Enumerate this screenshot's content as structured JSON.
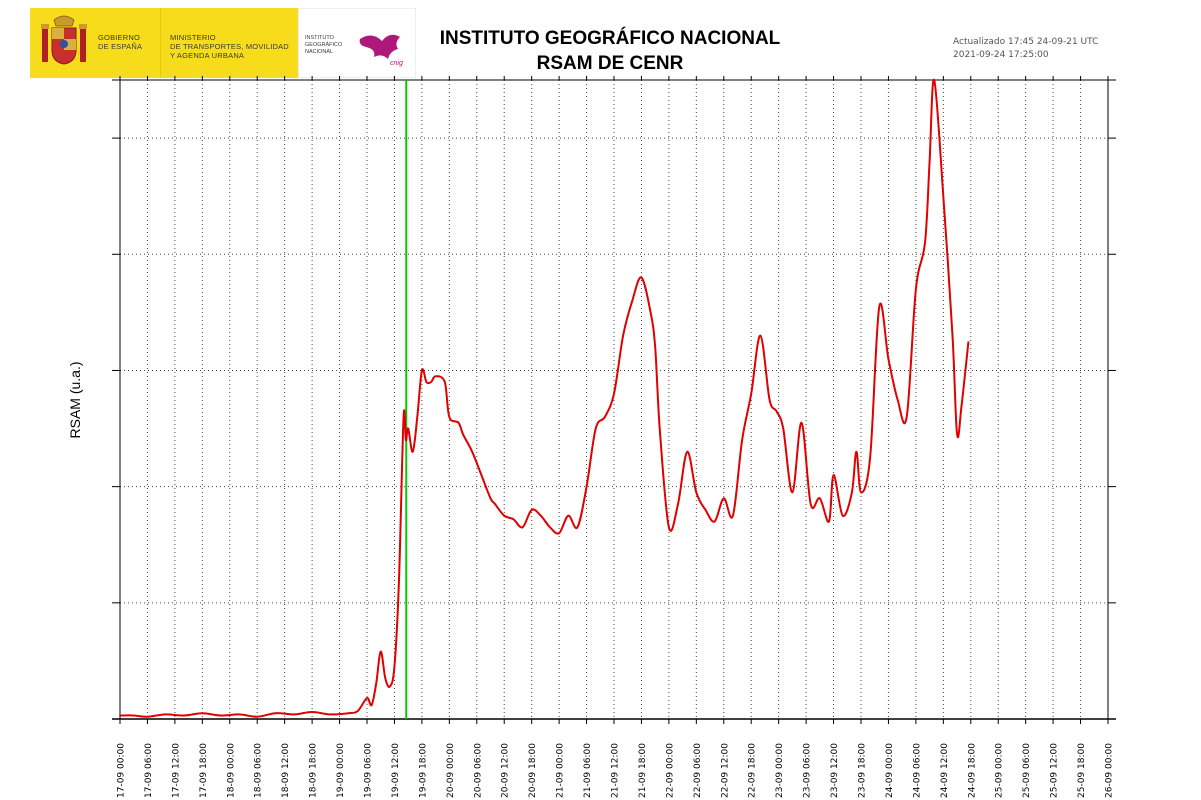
{
  "header": {
    "gov_line": [
      "GOBIERNO",
      "DE ESPAÑA"
    ],
    "ministry_line": [
      "MINISTERIO",
      "DE TRANSPORTES, MOVILIDAD",
      "Y AGENDA URBANA"
    ],
    "ign_line": [
      "INSTITUTO",
      "GEOGRÁFICO",
      "NACIONAL"
    ],
    "ign_brand": "cnig",
    "title": "INSTITUTO GEOGRÁFICO NACIONAL",
    "subtitle": "RSAM DE CENR",
    "updated": "Actualizado 17:45 24-09-21 UTC",
    "reference_time": "2021-09-24 17:25:00"
  },
  "colors": {
    "series": "#e00000",
    "marker": "#00cc00",
    "logo_bg": "#f7dc1c"
  },
  "chart_data": {
    "type": "line",
    "title": "RSAM DE CENR",
    "xlabel": "",
    "ylabel": "RSAM (u.a.)",
    "xlim": [
      "17-09 00:00",
      "26-09 00:00"
    ],
    "ylim": [
      0,
      5.5
    ],
    "x_ticks": [
      "17-09 00:00",
      "17-09 06:00",
      "17-09 12:00",
      "17-09 18:00",
      "18-09 00:00",
      "18-09 06:00",
      "18-09 12:00",
      "18-09 18:00",
      "19-09 00:00",
      "19-09 06:00",
      "19-09 12:00",
      "19-09 18:00",
      "20-09 00:00",
      "20-09 06:00",
      "20-09 12:00",
      "20-09 18:00",
      "21-09 00:00",
      "21-09 06:00",
      "21-09 12:00",
      "21-09 18:00",
      "22-09 00:00",
      "22-09 06:00",
      "22-09 12:00",
      "22-09 18:00",
      "23-09 00:00",
      "23-09 06:00",
      "23-09 12:00",
      "23-09 18:00",
      "24-09 00:00",
      "24-09 06:00",
      "24-09 12:00",
      "24-09 18:00",
      "25-09 00:00",
      "25-09 06:00",
      "25-09 12:00",
      "25-09 18:00",
      "26-09 00:00"
    ],
    "grid": true,
    "y_tick_labels_shown": false,
    "marker_line": {
      "x": "19-09 14:35",
      "color": "#00cc00"
    },
    "series": [
      {
        "color": "#e00000",
        "x": [
          "17-09 00:00",
          "17-09 03:00",
          "17-09 06:00",
          "17-09 10:00",
          "17-09 14:00",
          "17-09 18:00",
          "17-09 22:00",
          "18-09 02:00",
          "18-09 06:00",
          "18-09 10:00",
          "18-09 14:00",
          "18-09 18:00",
          "18-09 22:00",
          "19-09 02:00",
          "19-09 04:00",
          "19-09 06:00",
          "19-09 07:00",
          "19-09 08:00",
          "19-09 09:00",
          "19-09 10:00",
          "19-09 11:00",
          "19-09 12:00",
          "19-09 13:00",
          "19-09 14:00",
          "19-09 14:30",
          "19-09 15:00",
          "19-09 16:00",
          "19-09 17:00",
          "19-09 18:00",
          "19-09 19:00",
          "19-09 20:00",
          "19-09 21:00",
          "19-09 23:00",
          "20-09 00:00",
          "20-09 02:00",
          "20-09 03:00",
          "20-09 05:00",
          "20-09 07:00",
          "20-09 09:00",
          "20-09 10:00",
          "20-09 12:00",
          "20-09 14:00",
          "20-09 16:00",
          "20-09 18:00",
          "20-09 20:00",
          "20-09 22:00",
          "21-09 00:00",
          "21-09 02:00",
          "21-09 04:00",
          "21-09 06:00",
          "21-09 08:00",
          "21-09 10:00",
          "21-09 12:00",
          "21-09 14:00",
          "21-09 16:00",
          "21-09 18:00",
          "21-09 20:00",
          "21-09 21:00",
          "21-09 22:00",
          "22-09 00:00",
          "22-09 02:00",
          "22-09 04:00",
          "22-09 06:00",
          "22-09 08:00",
          "22-09 10:00",
          "22-09 12:00",
          "22-09 14:00",
          "22-09 16:00",
          "22-09 18:00",
          "22-09 20:00",
          "22-09 22:00",
          "22-09 23:30",
          "23-09 01:00",
          "23-09 03:00",
          "23-09 05:00",
          "23-09 07:00",
          "23-09 09:00",
          "23-09 11:00",
          "23-09 12:00",
          "23-09 14:00",
          "23-09 16:00",
          "23-09 17:00",
          "23-09 18:00",
          "23-09 20:00",
          "23-09 22:00",
          "24-09 00:00",
          "24-09 02:00",
          "24-09 04:00",
          "24-09 06:00",
          "24-09 08:00",
          "24-09 09:00",
          "24-09 10:00",
          "24-09 12:00",
          "24-09 14:00",
          "24-09 15:00",
          "24-09 16:00",
          "24-09 17:30"
        ],
        "y": [
          0.03,
          0.03,
          0.02,
          0.04,
          0.03,
          0.05,
          0.03,
          0.04,
          0.02,
          0.05,
          0.04,
          0.06,
          0.04,
          0.05,
          0.07,
          0.18,
          0.12,
          0.3,
          0.58,
          0.35,
          0.28,
          0.45,
          1.2,
          2.6,
          2.4,
          2.5,
          2.3,
          2.6,
          3.0,
          2.9,
          2.9,
          2.95,
          2.9,
          2.6,
          2.55,
          2.45,
          2.3,
          2.1,
          1.9,
          1.85,
          1.75,
          1.72,
          1.65,
          1.8,
          1.75,
          1.65,
          1.6,
          1.75,
          1.65,
          2.0,
          2.5,
          2.6,
          2.8,
          3.3,
          3.6,
          3.8,
          3.5,
          3.2,
          2.5,
          1.65,
          1.85,
          2.3,
          1.95,
          1.8,
          1.7,
          1.9,
          1.75,
          2.4,
          2.8,
          3.3,
          2.75,
          2.65,
          2.5,
          1.95,
          2.55,
          1.85,
          1.9,
          1.7,
          2.1,
          1.75,
          1.95,
          2.3,
          1.95,
          2.25,
          3.55,
          3.1,
          2.75,
          2.6,
          3.7,
          4.1,
          4.8,
          5.5,
          4.5,
          3.3,
          2.45,
          2.7,
          3.25
        ]
      }
    ]
  }
}
